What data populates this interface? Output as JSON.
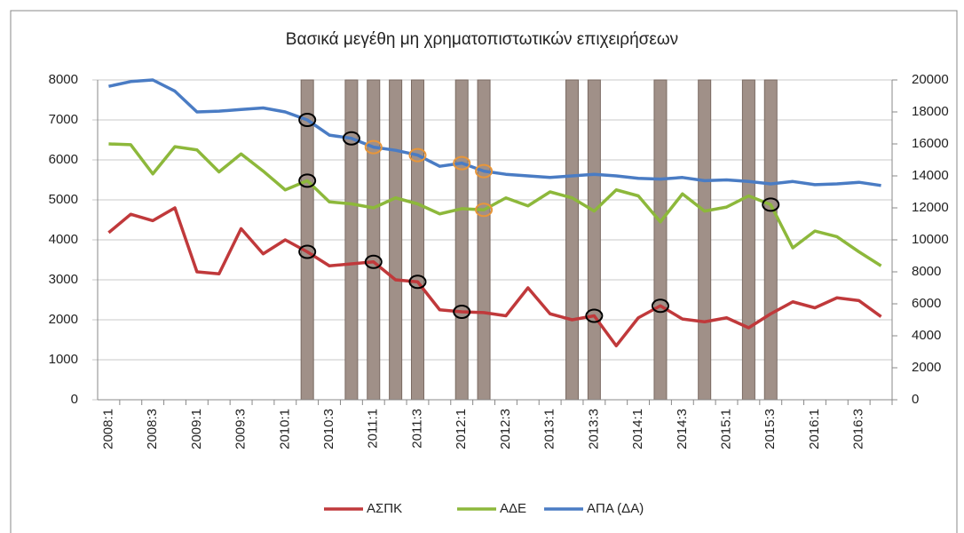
{
  "chart_data": {
    "type": "line",
    "title": "Βασικά μεγέθη μη χρηματοπιστωτικών επιχειρήσεων",
    "categories": [
      "2008:1",
      null,
      "2008:3",
      null,
      "2009:1",
      null,
      "2009:3",
      null,
      "2010:1",
      null,
      "2010:3",
      null,
      "2011:1",
      null,
      "2011:3",
      null,
      "2012:1",
      null,
      "2012:3",
      null,
      "2013:1",
      null,
      "2013:3",
      null,
      "2014:1",
      null,
      "2014:3",
      null,
      "2015:1",
      null,
      "2015:3",
      null,
      "2016:1",
      null,
      "2016:3",
      null
    ],
    "series": [
      {
        "name": "ΑΣΠΚ",
        "color": "#c0393b",
        "values": [
          4180,
          4640,
          4480,
          4800,
          3200,
          3150,
          4280,
          3650,
          4000,
          3700,
          3350,
          3400,
          3450,
          3000,
          2950,
          2250,
          2200,
          2180,
          2100,
          2800,
          2150,
          2000,
          2100,
          1350,
          2050,
          2350,
          2020,
          1950,
          2050,
          1800,
          2150,
          2450,
          2300,
          2550,
          2480,
          2080
        ],
        "markers": [
          {
            "index": 9,
            "color": "#000000"
          },
          {
            "index": 12,
            "color": "#000000"
          },
          {
            "index": 14,
            "color": "#000000"
          },
          {
            "index": 16,
            "color": "#000000"
          },
          {
            "index": 22,
            "color": "#000000"
          },
          {
            "index": 25,
            "color": "#000000"
          }
        ]
      },
      {
        "name": "ΑΔΕ",
        "color": "#8db83b",
        "values": [
          6400,
          6380,
          5650,
          6330,
          6250,
          5700,
          6150,
          5720,
          5250,
          5480,
          4950,
          4900,
          4800,
          5050,
          4900,
          4650,
          4780,
          4750,
          5050,
          4850,
          5200,
          5050,
          4720,
          5250,
          5100,
          4450,
          5150,
          4720,
          4820,
          5100,
          4880,
          3800,
          4220,
          4080,
          3700,
          3350
        ],
        "markers": [
          {
            "index": 9,
            "color": "#000000"
          },
          {
            "index": 17,
            "color": "#e8963a"
          },
          {
            "index": 30,
            "color": "#000000"
          }
        ]
      },
      {
        "name": "ΑΠΑ (ΔΑ)",
        "color": "#4a7cc4",
        "axis": "y2",
        "values": [
          19600,
          19900,
          20000,
          19300,
          18000,
          18050,
          18150,
          18250,
          18000,
          17500,
          16550,
          16350,
          15800,
          15600,
          15300,
          14600,
          14800,
          14300,
          14100,
          14000,
          13900,
          14000,
          14100,
          14000,
          13850,
          13800,
          13900,
          13700,
          13750,
          13650,
          13500,
          13650,
          13450,
          13500,
          13600,
          13400
        ],
        "markers": [
          {
            "index": 9,
            "color": "#000000"
          },
          {
            "index": 11,
            "color": "#000000"
          },
          {
            "index": 12,
            "color": "#e8963a"
          },
          {
            "index": 14,
            "color": "#e8963a"
          },
          {
            "index": 16,
            "color": "#e8963a"
          },
          {
            "index": 17,
            "color": "#e8963a"
          }
        ]
      }
    ],
    "bands": [
      9,
      11,
      12,
      13,
      14,
      16,
      17,
      21,
      22,
      25,
      27,
      29,
      30
    ],
    "ylim": [
      0,
      8000
    ],
    "yticks": [
      0,
      1000,
      2000,
      3000,
      4000,
      5000,
      6000,
      7000,
      8000
    ],
    "y2lim": [
      0,
      20000
    ],
    "y2ticks": [
      0,
      2000,
      4000,
      6000,
      8000,
      10000,
      12000,
      14000,
      16000,
      18000,
      20000
    ],
    "grid": true,
    "legend": "bottom"
  }
}
